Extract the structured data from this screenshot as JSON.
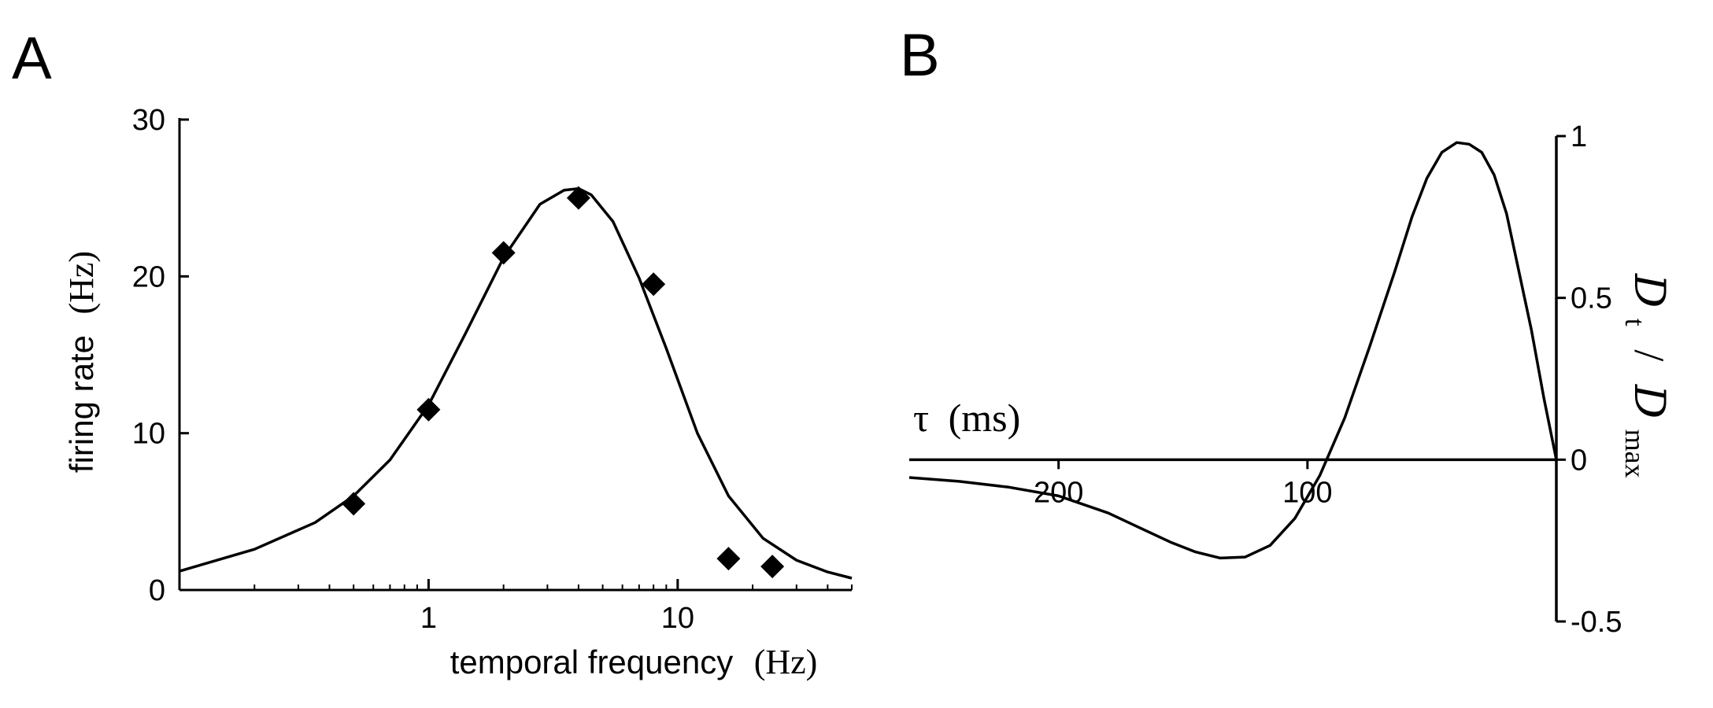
{
  "chart_data": [
    {
      "panel": "A",
      "type": "scatter",
      "xlabel": "temporal frequency",
      "xlabel_unit": "(Hz)",
      "ylabel": "firing rate",
      "ylabel_unit": "(Hz)",
      "xscale": "log",
      "xlim": [
        0.1,
        50
      ],
      "ylim": [
        0,
        30
      ],
      "x_ticks": [
        1,
        10
      ],
      "x_tick_labels": [
        "1",
        "10"
      ],
      "y_ticks": [
        0,
        10,
        20,
        30
      ],
      "y_tick_labels": [
        "0",
        "10",
        "20",
        "30"
      ],
      "points": {
        "x": [
          0.5,
          1,
          2,
          4,
          8,
          16,
          24
        ],
        "y": [
          5.5,
          11.5,
          21.5,
          25,
          19.5,
          2,
          1.5
        ]
      },
      "fit_curve": {
        "x": [
          0.1,
          0.2,
          0.35,
          0.5,
          0.7,
          1,
          1.4,
          2,
          2.8,
          3.5,
          4,
          4.5,
          5.5,
          7,
          9,
          12,
          16,
          22,
          30,
          40,
          50
        ],
        "y": [
          1.2,
          2.6,
          4.3,
          6.0,
          8.3,
          11.8,
          16.3,
          21.2,
          24.6,
          25.5,
          25.6,
          25.2,
          23.5,
          19.9,
          15.4,
          10.0,
          6.0,
          3.3,
          1.9,
          1.15,
          0.75
        ]
      }
    },
    {
      "panel": "B",
      "type": "line",
      "xlabel_symbol": "τ",
      "xlabel_unit": "(ms)",
      "ylabel_numerator": "D",
      "ylabel_numerator_sub": "t",
      "ylabel_separator": "/",
      "ylabel_denominator": "D",
      "ylabel_denominator_sub": "max",
      "xlim": [
        260,
        0
      ],
      "ylim": [
        -0.5,
        1
      ],
      "x_ticks": [
        200,
        100
      ],
      "x_tick_labels": [
        "200",
        "100"
      ],
      "y_ticks": [
        -0.5,
        0,
        0.5,
        1
      ],
      "y_tick_labels": [
        "-0.5",
        "0",
        "0.5",
        "1"
      ],
      "y_axis_position": "right",
      "series": [
        {
          "x": [
            260,
            240,
            220,
            200,
            180,
            165,
            155,
            145,
            135,
            125,
            115,
            105,
            95,
            85,
            75,
            65,
            58,
            52,
            46,
            40,
            35,
            30,
            25,
            20,
            15,
            10,
            5,
            0
          ],
          "y": [
            -0.055,
            -0.067,
            -0.085,
            -0.112,
            -0.165,
            -0.219,
            -0.255,
            -0.285,
            -0.304,
            -0.301,
            -0.265,
            -0.181,
            -0.048,
            0.13,
            0.35,
            0.58,
            0.75,
            0.87,
            0.95,
            0.98,
            0.975,
            0.95,
            0.88,
            0.76,
            0.58,
            0.4,
            0.19,
            0.0
          ]
        }
      ]
    }
  ],
  "panels": {
    "a_label": "A",
    "b_label": "B"
  }
}
